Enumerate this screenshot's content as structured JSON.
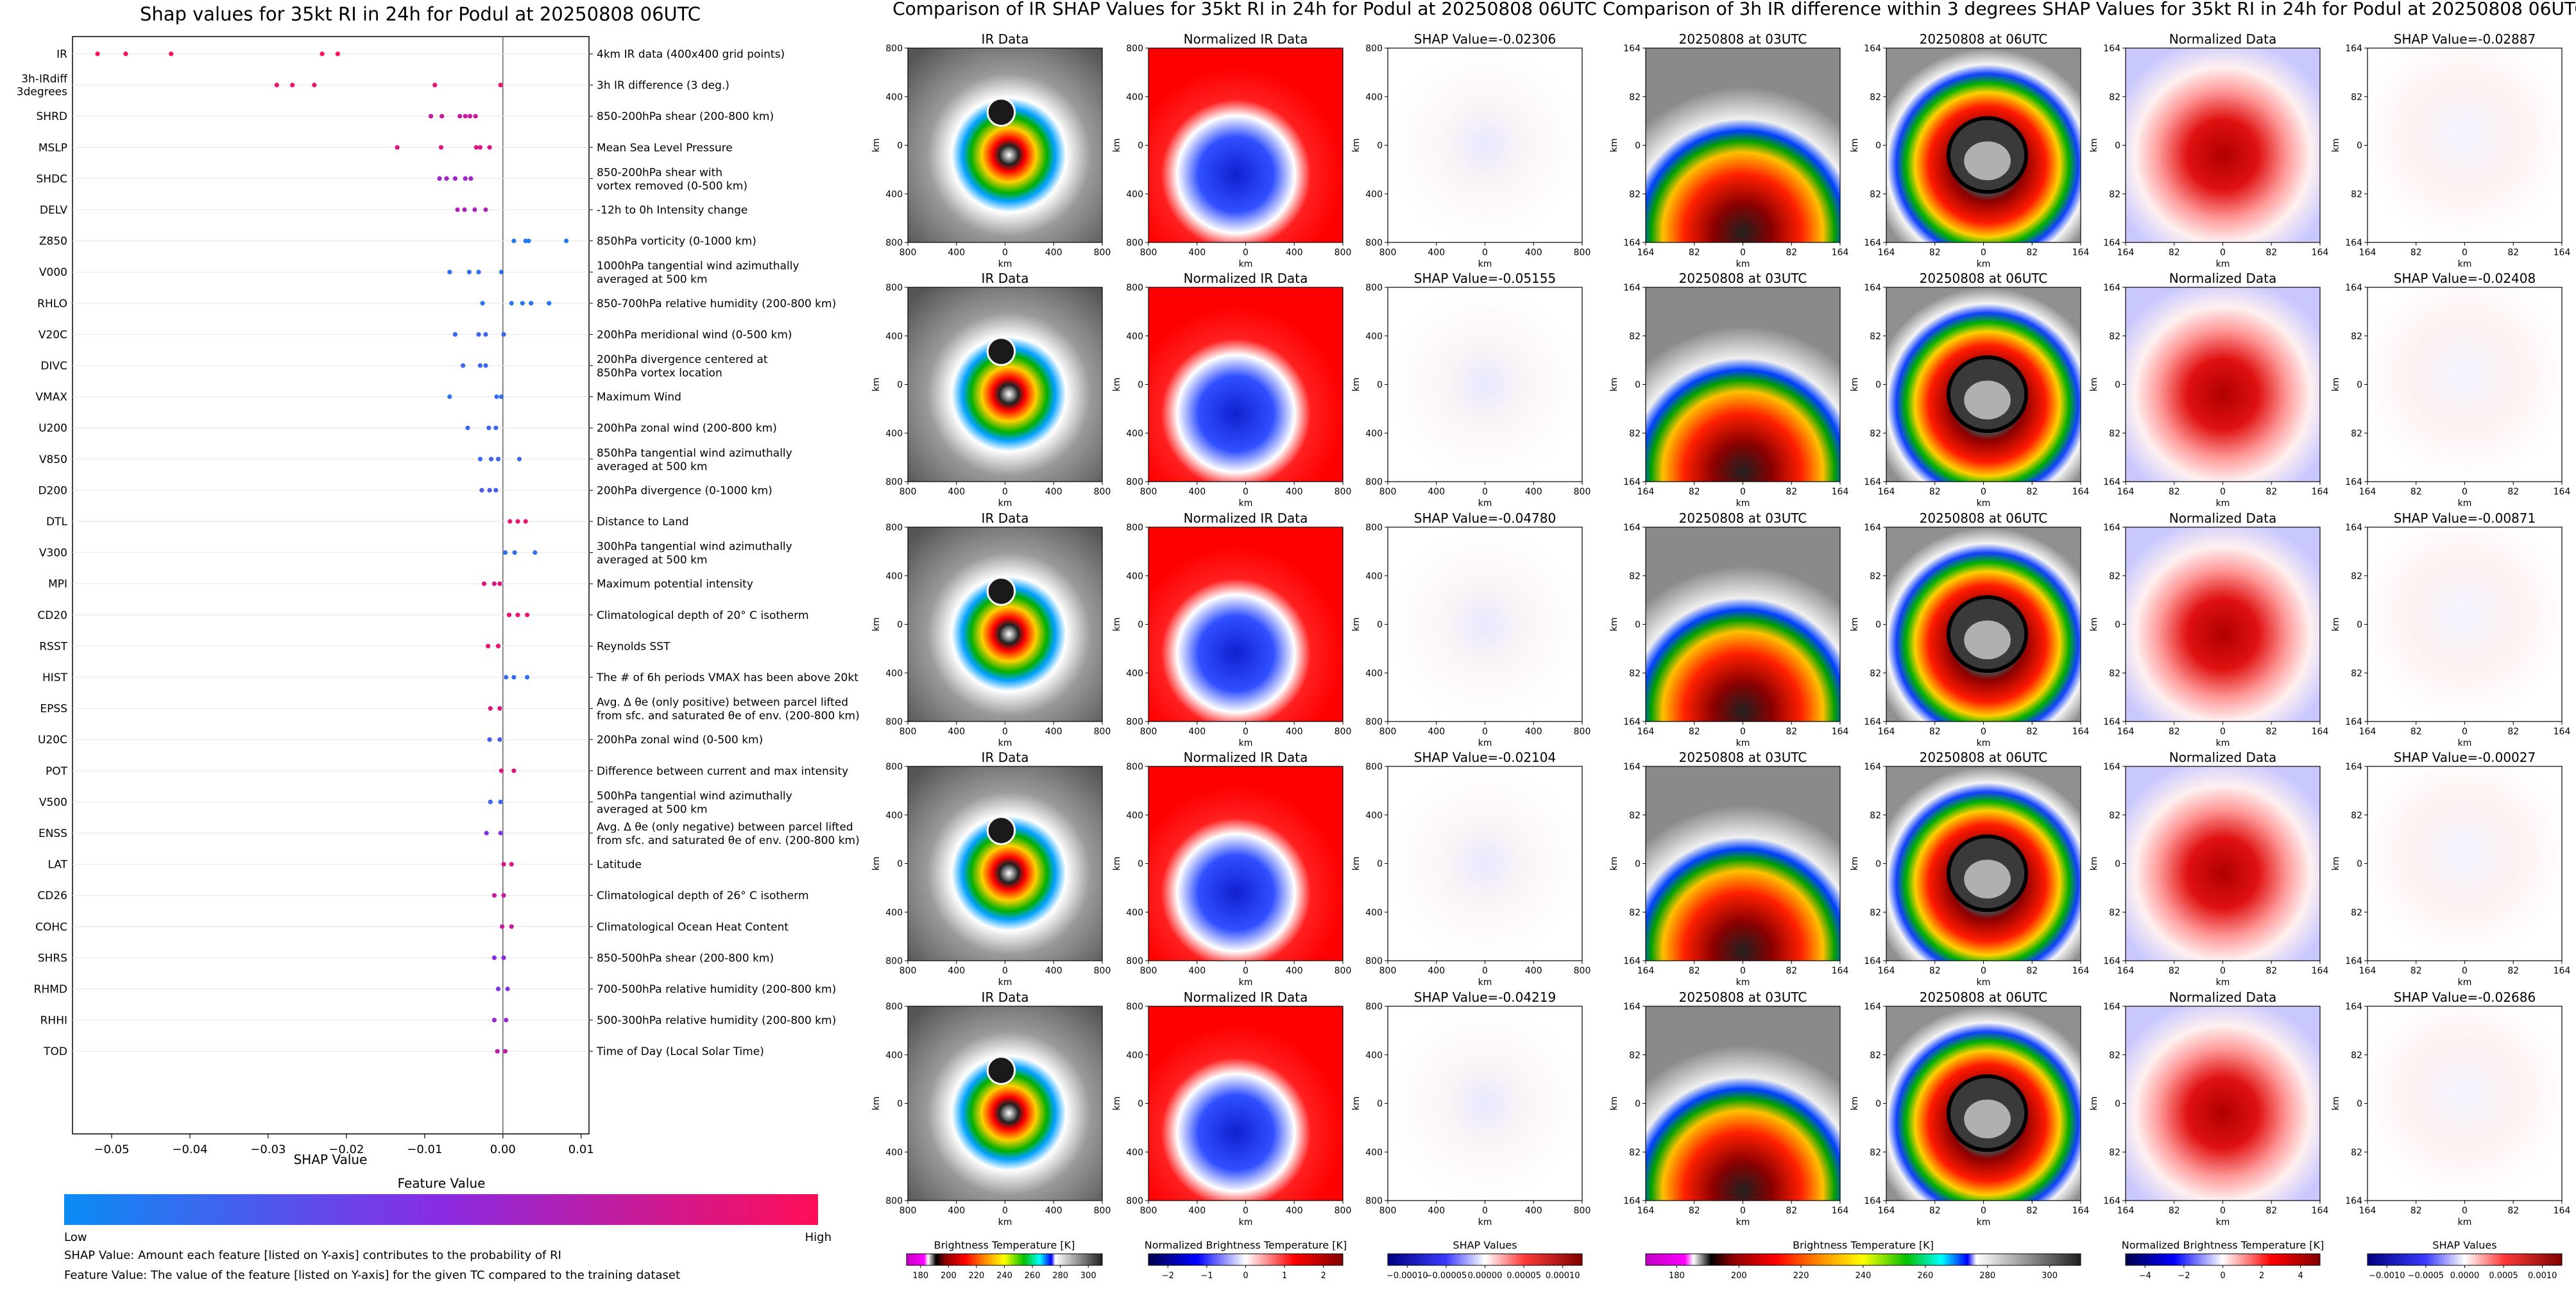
{
  "shap_panel": {
    "title": "Shap values for 35kt RI in 24h for Podul at 20250808 06UTC",
    "xlabel": "SHAP Value",
    "legend_title": "Feature Value",
    "legend_low": "Low",
    "legend_high": "High",
    "footnote1": "SHAP Value: Amount each feature [listed on Y-axis] contributes to the probability of RI",
    "footnote2": "Feature Value: The value of the feature [listed on Y-axis] for the given TC compared to the training dataset"
  },
  "ir_section": {
    "title": "Comparison of IR SHAP Values for 35kt RI in 24h for Podul at 20250808 06UTC",
    "col_titles": [
      "IR Data",
      "Normalized IR Data"
    ],
    "row_shap_titles": [
      "SHAP Value=-0.02306",
      "SHAP Value=-0.05155",
      "SHAP Value=-0.04780",
      "SHAP Value=-0.02104",
      "SHAP Value=-0.04219"
    ],
    "ticks": [
      "800",
      "400",
      "0",
      "400",
      "800"
    ],
    "axis_label": "km",
    "colorbars": [
      {
        "label": "Brightness Temperature [K]",
        "ticks": [
          "180",
          "200",
          "220",
          "240",
          "260",
          "280",
          "300"
        ]
      },
      {
        "label": "Normalized Brightness Temperature [K]",
        "ticks": [
          "−2",
          "−1",
          "0",
          "1",
          "2"
        ]
      },
      {
        "label": "SHAP Values",
        "ticks": [
          "−0.00010",
          "−0.00005",
          "0.00000",
          "0.00005",
          "0.00010"
        ]
      }
    ]
  },
  "diff_section": {
    "title": "Comparison of 3h IR difference within 3 degrees SHAP Values for 35kt RI in 24h for Podul at 20250808 06UTC",
    "col_titles": [
      "20250808 at 03UTC",
      "20250808 at 06UTC",
      "Normalized Data"
    ],
    "row_shap_titles": [
      "SHAP Value=-0.02887",
      "SHAP Value=-0.02408",
      "SHAP Value=-0.00871",
      "SHAP Value=-0.00027",
      "SHAP Value=-0.02686"
    ],
    "ticks": [
      "164",
      "82",
      "0",
      "82",
      "164"
    ],
    "axis_label": "km",
    "colorbars": [
      {
        "label": "Brightness Temperature [K]",
        "ticks": [
          "180",
          "200",
          "220",
          "240",
          "260",
          "280",
          "300"
        ]
      },
      {
        "label": "Normalized Brightness Temperature [K]",
        "ticks": [
          "−4",
          "−2",
          "0",
          "2",
          "4"
        ]
      },
      {
        "label": "SHAP Values",
        "ticks": [
          "−0.0010",
          "−0.0005",
          "0.0000",
          "0.0005",
          "0.0010"
        ]
      }
    ]
  },
  "chart_data": {
    "type": "scatter",
    "title": "Shap values for 35kt RI in 24h for Podul at 20250808 06UTC",
    "xlabel": "SHAP Value",
    "xlim": [
      -0.055,
      0.011
    ],
    "xticks": [
      -0.05,
      -0.04,
      -0.03,
      -0.02,
      -0.01,
      0.0,
      0.01
    ],
    "xtick_labels": [
      "−0.05",
      "−0.04",
      "−0.03",
      "−0.02",
      "−0.01",
      "0.00",
      "0.01"
    ],
    "colors": {
      "low": "#0a8cf5",
      "mid": "#8a2be2",
      "high": "#ff0d57"
    },
    "features": [
      {
        "name": "IR",
        "desc": "4km IR data (400x400 grid points)",
        "feature_value": 1.0,
        "shap": [
          -0.0518,
          -0.0482,
          -0.0424,
          -0.0231,
          -0.0211
        ]
      },
      {
        "name": "3h-IRdiff\n3degrees",
        "desc": "3h IR difference (3 deg.)",
        "feature_value": 0.9,
        "shap": [
          -0.0289,
          -0.0269,
          -0.0241,
          -0.0087,
          -0.0003
        ]
      },
      {
        "name": "SHRD",
        "desc": "850-200hPa shear (200-800 km)",
        "feature_value": 0.75,
        "shap": [
          -0.0092,
          -0.0078,
          -0.0055,
          -0.0048,
          -0.0042,
          -0.0035
        ]
      },
      {
        "name": "MSLP",
        "desc": "Mean Sea Level Pressure",
        "feature_value": 0.85,
        "shap": [
          -0.0135,
          -0.0079,
          -0.0034,
          -0.0029,
          -0.0017
        ]
      },
      {
        "name": "SHDC",
        "desc": "850-200hPa shear with\nvortex removed (0-500 km)",
        "feature_value": 0.6,
        "shap": [
          -0.0081,
          -0.0072,
          -0.0061,
          -0.0048,
          -0.0041
        ]
      },
      {
        "name": "DELV",
        "desc": "-12h to 0h Intensity change",
        "feature_value": 0.65,
        "shap": [
          -0.0058,
          -0.0049,
          -0.0036,
          -0.0022
        ]
      },
      {
        "name": "Z850",
        "desc": "850hPa vorticity (0-1000 km)",
        "feature_value": 0.1,
        "shap": [
          0.0014,
          0.0029,
          0.0033,
          0.0081
        ]
      },
      {
        "name": "V000",
        "desc": "1000hPa tangential wind azimuthally\naveraged at 500 km",
        "feature_value": 0.15,
        "shap": [
          -0.0068,
          -0.0043,
          -0.0031,
          -0.0002
        ]
      },
      {
        "name": "RHLO",
        "desc": "850-700hPa relative humidity (200-800 km)",
        "feature_value": 0.12,
        "shap": [
          -0.0026,
          0.0011,
          0.0025,
          0.0036,
          0.0059
        ]
      },
      {
        "name": "V20C",
        "desc": "200hPa meridional wind (0-500 km)",
        "feature_value": 0.2,
        "shap": [
          -0.0061,
          -0.0031,
          -0.0022,
          0.0001
        ]
      },
      {
        "name": "DIVC",
        "desc": "200hPa divergence centered at\n850hPa vortex location",
        "feature_value": 0.2,
        "shap": [
          -0.0051,
          -0.0029,
          -0.0022
        ]
      },
      {
        "name": "VMAX",
        "desc": "Maximum Wind",
        "feature_value": 0.15,
        "shap": [
          -0.0068,
          -0.0008,
          -0.0002
        ]
      },
      {
        "name": "U200",
        "desc": "200hPa zonal wind (200-800 km)",
        "feature_value": 0.2,
        "shap": [
          -0.0045,
          -0.0018,
          -0.0009
        ]
      },
      {
        "name": "V850",
        "desc": "850hPa tangential wind azimuthally\naveraged at 500 km",
        "feature_value": 0.2,
        "shap": [
          -0.0029,
          -0.0015,
          -0.0006,
          0.0021
        ]
      },
      {
        "name": "D200",
        "desc": "200hPa divergence (0-1000 km)",
        "feature_value": 0.25,
        "shap": [
          -0.0027,
          -0.0017,
          -0.0009
        ]
      },
      {
        "name": "DTL",
        "desc": "Distance to Land",
        "feature_value": 0.9,
        "shap": [
          0.0009,
          0.0019,
          0.0029
        ]
      },
      {
        "name": "V300",
        "desc": "300hPa tangential wind azimuthally\naveraged at 500 km",
        "feature_value": 0.15,
        "shap": [
          0.0003,
          0.0015,
          0.0041
        ]
      },
      {
        "name": "MPI",
        "desc": "Maximum potential intensity",
        "feature_value": 0.85,
        "shap": [
          -0.0024,
          -0.0011,
          -0.0004
        ]
      },
      {
        "name": "CD20",
        "desc": "Climatological depth of 20° C isotherm",
        "feature_value": 0.9,
        "shap": [
          0.0008,
          0.0019,
          0.0031
        ]
      },
      {
        "name": "RSST",
        "desc": "Reynolds SST",
        "feature_value": 0.9,
        "shap": [
          -0.0019,
          -0.0006
        ]
      },
      {
        "name": "HIST",
        "desc": "The # of 6h periods VMAX has been above 20kt",
        "feature_value": 0.15,
        "shap": [
          0.0004,
          0.0014,
          0.0031
        ]
      },
      {
        "name": "EPSS",
        "desc": "Avg. Δ θe (only positive) between parcel lifted\nfrom sfc. and saturated θe of env. (200-800 km)",
        "feature_value": 0.85,
        "shap": [
          -0.0016,
          -0.0004
        ]
      },
      {
        "name": "U20C",
        "desc": "200hPa zonal wind (0-500 km)",
        "feature_value": 0.25,
        "shap": [
          -0.0017,
          -0.0004
        ]
      },
      {
        "name": "POT",
        "desc": "Difference between current and max intensity",
        "feature_value": 0.85,
        "shap": [
          -0.0002,
          0.0014
        ]
      },
      {
        "name": "V500",
        "desc": "500hPa tangential wind azimuthally\naveraged at 500 km",
        "feature_value": 0.2,
        "shap": [
          -0.0016,
          -0.0003
        ]
      },
      {
        "name": "ENSS",
        "desc": "Avg. Δ θe (only negative) between parcel lifted\nfrom sfc. and saturated θe of env. (200-800 km)",
        "feature_value": 0.45,
        "shap": [
          -0.0021,
          -0.0003
        ]
      },
      {
        "name": "LAT",
        "desc": "Latitude",
        "feature_value": 0.85,
        "shap": [
          0.0001,
          0.0011
        ]
      },
      {
        "name": "CD26",
        "desc": "Climatological depth of 26° C isotherm",
        "feature_value": 0.75,
        "shap": [
          -0.0011,
          0.0001
        ]
      },
      {
        "name": "COHC",
        "desc": "Climatological Ocean Heat Content",
        "feature_value": 0.75,
        "shap": [
          -0.0001,
          0.0011
        ]
      },
      {
        "name": "SHRS",
        "desc": "850-500hPa shear (200-800 km)",
        "feature_value": 0.5,
        "shap": [
          -0.0011,
          0.0001
        ]
      },
      {
        "name": "RHMD",
        "desc": "700-500hPa relative humidity (200-800 km)",
        "feature_value": 0.45,
        "shap": [
          -0.0006,
          0.0006
        ]
      },
      {
        "name": "RHHI",
        "desc": "500-300hPa relative humidity (200-800 km)",
        "feature_value": 0.55,
        "shap": [
          -0.0011,
          0.0004
        ]
      },
      {
        "name": "TOD",
        "desc": "Time of Day (Local Solar Time)",
        "feature_value": 0.7,
        "shap": [
          -0.0007,
          0.0003
        ]
      }
    ]
  }
}
